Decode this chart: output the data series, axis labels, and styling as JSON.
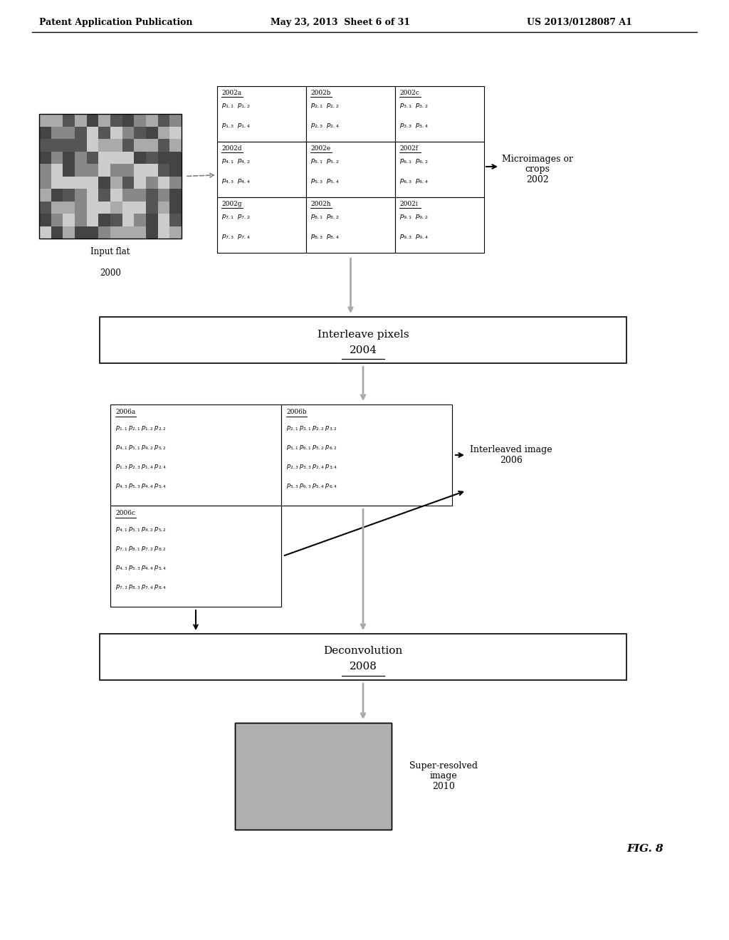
{
  "header_left": "Patent Application Publication",
  "header_mid": "May 23, 2013  Sheet 6 of 31",
  "header_right": "US 2013/0128087 A1",
  "fig_label": "FIG. 8",
  "input_flat_label": "Input flat\n2000",
  "microimages_label": "Microimages or\ncrops\n2002",
  "interleave_box_text": "Interleave pixels\n2004",
  "interleaved_image_label": "Interleaved image\n2006",
  "deconv_box_text": "Deconvolution\n2008",
  "superresolved_label": "Super-resolved\nimage\n2010",
  "grid_top": {
    "cells": [
      {
        "id": "2002a",
        "row1": "p_{1,1}\\;\\;p_{1,2}",
        "row2": "p_{1,3}\\;\\;p_{1,4}"
      },
      {
        "id": "2002b",
        "row1": "p_{2,1}\\;\\;p_{2,2}",
        "row2": "p_{2,3}\\;\\;p_{2,4}"
      },
      {
        "id": "2002c",
        "row1": "p_{3,1}\\;\\;p_{3,2}",
        "row2": "p_{3,3}\\;\\;p_{3,4}"
      },
      {
        "id": "2002d",
        "row1": "p_{4,1}\\;\\;p_{4,2}",
        "row2": "p_{4,3}\\;\\;p_{4,4}"
      },
      {
        "id": "2002e",
        "row1": "p_{5,1}\\;\\;p_{5,2}",
        "row2": "p_{5,3}\\;\\;p_{5,4}"
      },
      {
        "id": "2002f",
        "row1": "p_{6,1}\\;\\;p_{6,2}",
        "row2": "p_{6,3}\\;\\;p_{6,4}"
      },
      {
        "id": "2002g",
        "row1": "p_{7,1}\\;\\;p_{7,2}",
        "row2": "p_{7,3}\\;\\;p_{7,4}"
      },
      {
        "id": "2002h",
        "row1": "p_{8,1}\\;\\;p_{8,2}",
        "row2": "p_{8,3}\\;\\;p_{8,4}"
      },
      {
        "id": "2002i",
        "row1": "p_{9,1}\\;\\;p_{9,2}",
        "row2": "p_{9,3}\\;\\;p_{9,4}"
      }
    ]
  },
  "grid_bottom": {
    "cells_a": {
      "id": "2006a",
      "rows": [
        "p_{1,1}\\;p_{2,1}\\;p_{1,2}\\;p_{2,2}",
        "p_{4,1}\\;p_{5,1}\\;p_{4,2}\\;p_{5,2}",
        "p_{1,3}\\;p_{2,3}\\;p_{1,4}\\;p_{2,4}",
        "p_{4,3}\\;p_{5,3}\\;p_{4,4}\\;p_{5,4}"
      ]
    },
    "cells_b": {
      "id": "2006b",
      "rows": [
        "p_{2,1}\\;p_{3,1}\\;p_{2,2}\\;p_{3,2}",
        "p_{5,1}\\;p_{6,1}\\;p_{5,2}\\;p_{6,2}",
        "p_{2,3}\\;p_{3,3}\\;p_{2,4}\\;p_{3,4}",
        "p_{5,3}\\;p_{6,3}\\;p_{5,4}\\;p_{6,4}"
      ]
    },
    "cells_c": {
      "id": "2006c",
      "rows": [
        "p_{4,1}\\;p_{5,1}\\;p_{4,2}\\;p_{5,2}",
        "p_{7,1}\\;p_{8,1}\\;p_{7,2}\\;p_{8,2}",
        "p_{4,3}\\;p_{5,3}\\;p_{4,4}\\;p_{5,4}",
        "p_{7,3}\\;p_{8,3}\\;p_{7,4}\\;p_{8,4}"
      ]
    }
  }
}
